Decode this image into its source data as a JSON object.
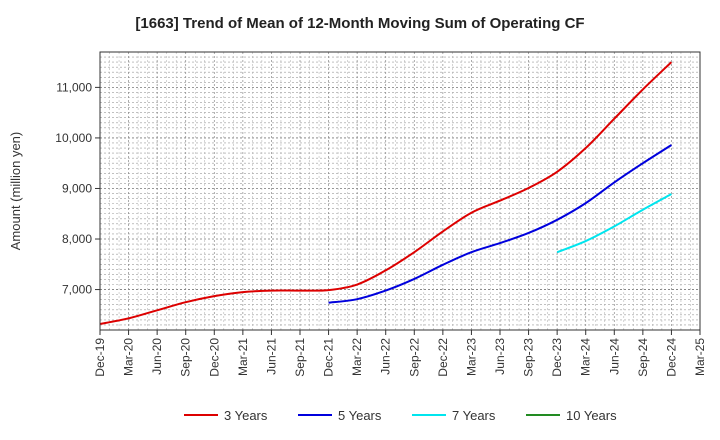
{
  "chart_data": {
    "type": "line",
    "title": "[1663]  Trend of Mean of 12-Month Moving Sum of Operating CF",
    "xlabel": "",
    "ylabel": "Amount (million yen)",
    "ylim": [
      6200,
      11700
    ],
    "yticks": [
      7000,
      8000,
      9000,
      10000,
      11000
    ],
    "ytick_labels": [
      "7,000",
      "8,000",
      "9,000",
      "10,000",
      "11,000"
    ],
    "categories": [
      "Dec-19",
      "Mar-20",
      "Jun-20",
      "Sep-20",
      "Dec-20",
      "Mar-21",
      "Jun-21",
      "Sep-21",
      "Dec-21",
      "Mar-22",
      "Jun-22",
      "Sep-22",
      "Dec-22",
      "Mar-23",
      "Jun-23",
      "Sep-23",
      "Dec-23",
      "Mar-24",
      "Jun-24",
      "Sep-24",
      "Dec-24",
      "Mar-25"
    ],
    "grid": true,
    "legend_position": "bottom",
    "series": [
      {
        "name": "3 Years",
        "color": "#dd0000",
        "values": [
          6320,
          6430,
          6590,
          6750,
          6870,
          6950,
          6980,
          6980,
          6990,
          7100,
          7380,
          7740,
          8150,
          8520,
          8760,
          9010,
          9330,
          9800,
          10380,
          10960,
          11500,
          null
        ]
      },
      {
        "name": "5 Years",
        "color": "#0000dd",
        "values": [
          null,
          null,
          null,
          null,
          null,
          null,
          null,
          null,
          6740,
          6810,
          6980,
          7210,
          7490,
          7740,
          7920,
          8120,
          8380,
          8710,
          9120,
          9500,
          9860,
          null
        ]
      },
      {
        "name": "7 Years",
        "color": "#00e5ee",
        "values": [
          null,
          null,
          null,
          null,
          null,
          null,
          null,
          null,
          null,
          null,
          null,
          null,
          null,
          null,
          null,
          null,
          7740,
          7960,
          8250,
          8580,
          8890,
          null
        ]
      },
      {
        "name": "10 Years",
        "color": "#228b22",
        "values": [
          null,
          null,
          null,
          null,
          null,
          null,
          null,
          null,
          null,
          null,
          null,
          null,
          null,
          null,
          null,
          null,
          null,
          null,
          null,
          null,
          null,
          null
        ]
      }
    ]
  }
}
